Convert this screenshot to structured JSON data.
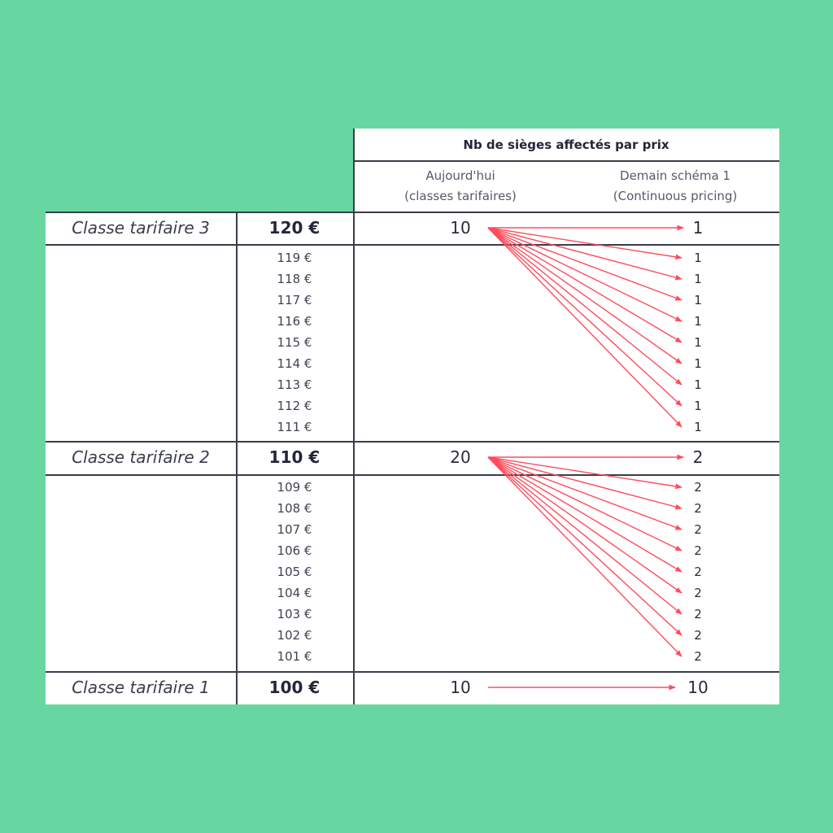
{
  "header": {
    "title": "Nb de sièges affectés par prix",
    "col_today": "Aujourd'hui",
    "col_today_sub": "(classes tarifaires)",
    "col_tomorrow": "Demain schéma 1",
    "col_tomorrow_sub": "(Continuous pricing)"
  },
  "classes": [
    {
      "label": "Classe tarifaire 3",
      "price": "120 €",
      "today": "10",
      "tomorrow": "1",
      "sub_prices": [
        "119 €",
        "118 €",
        "117 €",
        "116 €",
        "115 €",
        "114 €",
        "113 €",
        "112 €",
        "111 €"
      ],
      "sub_tomorrow": [
        "1",
        "1",
        "1",
        "1",
        "1",
        "1",
        "1",
        "1",
        "1"
      ]
    },
    {
      "label": "Classe tarifaire 2",
      "price": "110 €",
      "today": "20",
      "tomorrow": "2",
      "sub_prices": [
        "109 €",
        "108 €",
        "107 €",
        "106 €",
        "105 €",
        "104 €",
        "103 €",
        "102 €",
        "101 €"
      ],
      "sub_tomorrow": [
        "2",
        "2",
        "2",
        "2",
        "2",
        "2",
        "2",
        "2",
        "2"
      ]
    },
    {
      "label": "Classe tarifaire 1",
      "price": "100 €",
      "today": "10",
      "tomorrow": "10",
      "sub_prices": [],
      "sub_tomorrow": []
    }
  ],
  "colors": {
    "background": "#68d6a0",
    "arrow": "#ff4b5c",
    "border": "#3a3d48"
  }
}
